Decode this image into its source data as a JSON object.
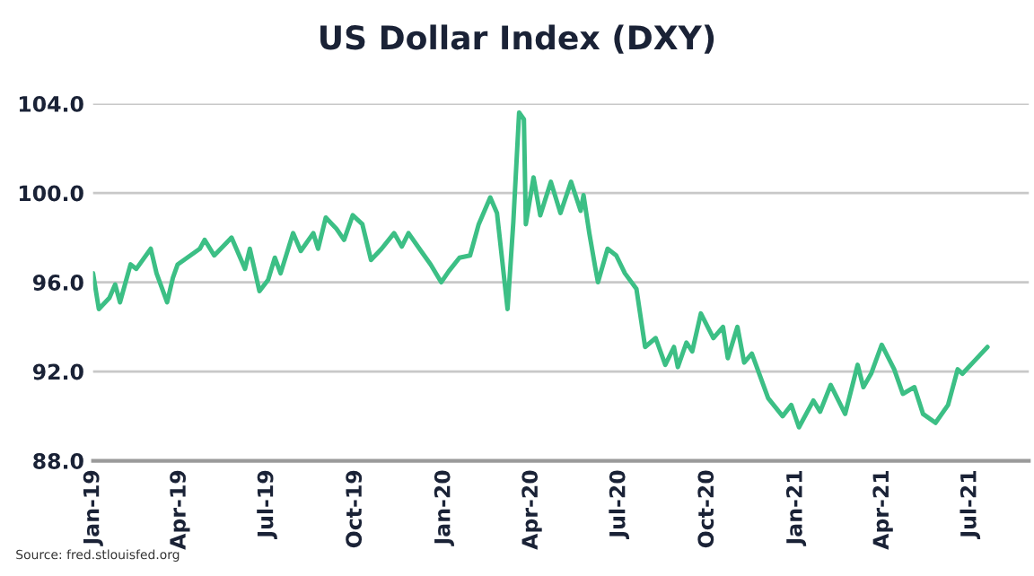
{
  "chart_data": {
    "type": "line",
    "title": "US Dollar Index (DXY)",
    "x": [
      "2019-01-01",
      "2019-01-07",
      "2019-01-18",
      "2019-01-24",
      "2019-01-29",
      "2019-02-09",
      "2019-02-15",
      "2019-03-02",
      "2019-03-08",
      "2019-03-19",
      "2019-03-25",
      "2019-03-30",
      "2019-04-22",
      "2019-04-27",
      "2019-05-07",
      "2019-05-25",
      "2019-06-08",
      "2019-06-13",
      "2019-06-23",
      "2019-07-02",
      "2019-07-09",
      "2019-07-15",
      "2019-07-28",
      "2019-08-05",
      "2019-08-18",
      "2019-08-23",
      "2019-08-31",
      "2019-09-11",
      "2019-09-19",
      "2019-09-28",
      "2019-10-08",
      "2019-10-17",
      "2019-10-28",
      "2019-11-10",
      "2019-11-18",
      "2019-11-25",
      "2019-12-08",
      "2019-12-18",
      "2019-12-29",
      "2020-01-06",
      "2020-01-17",
      "2020-01-28",
      "2020-02-06",
      "2020-02-18",
      "2020-02-25",
      "2020-03-07",
      "2020-03-13",
      "2020-03-19",
      "2020-03-24",
      "2020-03-26",
      "2020-04-03",
      "2020-04-10",
      "2020-04-21",
      "2020-05-01",
      "2020-05-12",
      "2020-05-22",
      "2020-05-25",
      "2020-05-31",
      "2020-06-06",
      "2020-06-09",
      "2020-06-19",
      "2020-06-28",
      "2020-07-07",
      "2020-07-19",
      "2020-07-28",
      "2020-08-08",
      "2020-08-18",
      "2020-08-27",
      "2020-08-31",
      "2020-09-09",
      "2020-09-15",
      "2020-09-24",
      "2020-10-07",
      "2020-10-17",
      "2020-10-22",
      "2020-11-01",
      "2020-11-08",
      "2020-11-16",
      "2020-12-03",
      "2020-12-18",
      "2020-12-27",
      "2021-01-04",
      "2021-01-19",
      "2021-01-26",
      "2021-02-06",
      "2021-02-21",
      "2021-03-06",
      "2021-03-12",
      "2021-03-20",
      "2021-03-31",
      "2021-04-13",
      "2021-04-22",
      "2021-05-04",
      "2021-05-13",
      "2021-05-26",
      "2021-06-08",
      "2021-06-18",
      "2021-06-23",
      "2021-07-06",
      "2021-07-19"
    ],
    "series": [
      {
        "color": "#3cbf85",
        "values": [
          96.4,
          94.8,
          95.3,
          95.9,
          95.1,
          96.8,
          96.6,
          97.5,
          96.4,
          95.1,
          96.2,
          96.8,
          97.5,
          97.9,
          97.2,
          98.0,
          96.6,
          97.5,
          95.6,
          96.1,
          97.1,
          96.4,
          98.2,
          97.4,
          98.2,
          97.5,
          98.9,
          98.4,
          97.9,
          99.0,
          98.6,
          97.0,
          97.5,
          98.2,
          97.6,
          98.2,
          97.4,
          96.8,
          96.0,
          96.5,
          97.1,
          97.2,
          98.6,
          99.8,
          99.1,
          94.8,
          98.7,
          103.6,
          103.3,
          98.6,
          100.7,
          99.0,
          100.5,
          99.1,
          100.5,
          99.2,
          99.9,
          98.2,
          96.7,
          96.0,
          97.5,
          97.2,
          96.4,
          95.7,
          93.1,
          93.5,
          92.3,
          93.1,
          92.2,
          93.3,
          92.9,
          94.6,
          93.5,
          94.0,
          92.6,
          94.0,
          92.4,
          92.8,
          90.8,
          90.0,
          90.5,
          89.5,
          90.7,
          90.2,
          91.4,
          90.1,
          92.3,
          91.3,
          91.9,
          93.2,
          92.1,
          91.0,
          91.3,
          90.1,
          89.7,
          90.5,
          92.1,
          91.9,
          92.5,
          93.1
        ]
      }
    ],
    "xlim": [
      "2019-01-01",
      "2021-08-31"
    ],
    "xticks": [
      {
        "value": "2019-01-01",
        "label": "Jan-19"
      },
      {
        "value": "2019-04-01",
        "label": "Apr-19"
      },
      {
        "value": "2019-07-01",
        "label": "Jul-19"
      },
      {
        "value": "2019-10-01",
        "label": "Oct-19"
      },
      {
        "value": "2020-01-01",
        "label": "Jan-20"
      },
      {
        "value": "2020-04-01",
        "label": "Apr-20"
      },
      {
        "value": "2020-07-01",
        "label": "Jul-20"
      },
      {
        "value": "2020-10-01",
        "label": "Oct-20"
      },
      {
        "value": "2021-01-01",
        "label": "Jan-21"
      },
      {
        "value": "2021-04-01",
        "label": "Apr-21"
      },
      {
        "value": "2021-07-01",
        "label": "Jul-21"
      }
    ],
    "ylim": [
      88,
      104
    ],
    "yticks": [
      {
        "value": 88,
        "label": "88.0"
      },
      {
        "value": 92,
        "label": "92.0"
      },
      {
        "value": 96,
        "label": "96.0"
      },
      {
        "value": 100,
        "label": "100.0"
      },
      {
        "value": 104,
        "label": "104.0"
      }
    ],
    "grid": "y",
    "line_style": "solid",
    "marker": "none",
    "annotations": [
      "Source: fred.stlouisfed.org"
    ]
  }
}
